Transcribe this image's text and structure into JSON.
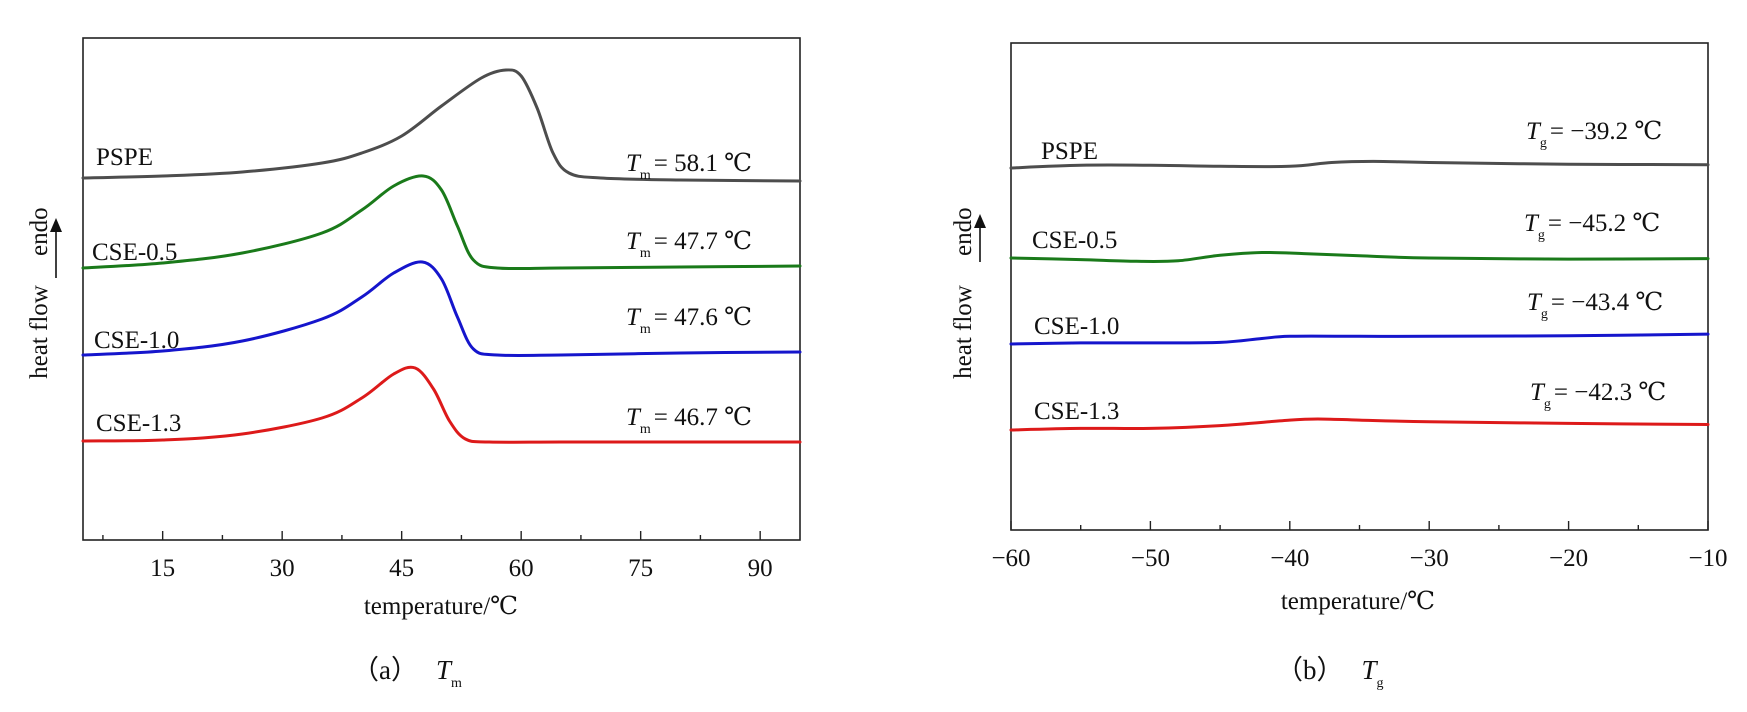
{
  "chart_data": [
    {
      "type": "line",
      "caption": {
        "label": "（a）",
        "symbol": "T",
        "subscript": "m"
      },
      "xlabel": "temperature/℃",
      "ylabel": "heat flow",
      "ylabel_arrow": "endo",
      "xlim": [
        5,
        95
      ],
      "xticks": [
        "15",
        "30",
        "45",
        "60",
        "75",
        "90"
      ],
      "xtick_values": [
        15,
        30,
        45,
        60,
        75,
        90
      ],
      "grid": false,
      "colors": [
        "#4d4d4d",
        "#1a7a1a",
        "#1515cc",
        "#dd1a1a"
      ],
      "series": [
        {
          "name": "PSPE",
          "color": "#4d4d4d",
          "annotation": {
            "symbol": "T",
            "subscript": "m",
            "text": "= 58.1 ℃"
          },
          "x": [
            5,
            15,
            25,
            35,
            40,
            45,
            50,
            55,
            58.1,
            60,
            62,
            64,
            66,
            70,
            80,
            95
          ],
          "y": [
            0.0,
            0.02,
            0.06,
            0.15,
            0.25,
            0.42,
            0.72,
            1.0,
            1.08,
            1.02,
            0.7,
            0.25,
            0.05,
            0.0,
            -0.02,
            -0.03
          ]
        },
        {
          "name": "CSE-0.5",
          "color": "#1a7a1a",
          "annotation": {
            "symbol": "T",
            "subscript": "m",
            "text": "= 47.7 ℃"
          },
          "x": [
            5,
            15,
            25,
            35,
            40,
            44,
            47.7,
            50,
            52,
            54,
            57,
            65,
            80,
            95
          ],
          "y": [
            0.0,
            0.05,
            0.15,
            0.35,
            0.58,
            0.82,
            0.92,
            0.78,
            0.42,
            0.08,
            0.0,
            0.0,
            0.01,
            0.02
          ]
        },
        {
          "name": "CSE-1.0",
          "color": "#1515cc",
          "annotation": {
            "symbol": "T",
            "subscript": "m",
            "text": "= 47.6 ℃"
          },
          "x": [
            5,
            15,
            25,
            35,
            40,
            44,
            47.6,
            50,
            52,
            54,
            57,
            65,
            80,
            95
          ],
          "y": [
            0.0,
            0.04,
            0.14,
            0.36,
            0.58,
            0.82,
            0.93,
            0.76,
            0.38,
            0.06,
            0.0,
            0.0,
            0.02,
            0.03
          ]
        },
        {
          "name": "CSE-1.3",
          "color": "#dd1a1a",
          "annotation": {
            "symbol": "T",
            "subscript": "m",
            "text": "= 46.7 ℃"
          },
          "x": [
            5,
            15,
            25,
            35,
            40,
            44,
            46.7,
            49,
            51,
            53,
            56,
            65,
            80,
            95
          ],
          "y": [
            0.0,
            0.01,
            0.07,
            0.23,
            0.43,
            0.67,
            0.73,
            0.52,
            0.2,
            0.02,
            -0.01,
            -0.01,
            -0.01,
            -0.01
          ]
        }
      ]
    },
    {
      "type": "line",
      "caption": {
        "label": "（b）",
        "symbol": "T",
        "subscript": "g"
      },
      "xlabel": "temperature/℃",
      "ylabel": "heat flow",
      "ylabel_arrow": "endo",
      "xlim": [
        -60,
        -10
      ],
      "xticks": [
        "−60",
        "−50",
        "−40",
        "−30",
        "−20",
        "−10"
      ],
      "xtick_values": [
        -60,
        -50,
        -40,
        -30,
        -20,
        -10
      ],
      "grid": false,
      "colors": [
        "#4d4d4d",
        "#1a7a1a",
        "#1515cc",
        "#dd1a1a"
      ],
      "series": [
        {
          "name": "PSPE",
          "color": "#4d4d4d",
          "annotation": {
            "symbol": "T",
            "subscript": "g",
            "text": "= −39.2 ℃"
          },
          "x": [
            -60,
            -55,
            -50,
            -45,
            -40,
            -37,
            -34,
            -30,
            -20,
            -10
          ],
          "y": [
            0.0,
            0.05,
            0.05,
            0.03,
            0.03,
            0.1,
            0.12,
            0.1,
            0.07,
            0.06
          ]
        },
        {
          "name": "CSE-0.5",
          "color": "#1a7a1a",
          "annotation": {
            "symbol": "T",
            "subscript": "g",
            "text": "= −45.2 ℃"
          },
          "x": [
            -60,
            -55,
            -51,
            -48,
            -45,
            -42,
            -39,
            -35,
            -30,
            -20,
            -10
          ],
          "y": [
            0.0,
            -0.03,
            -0.06,
            -0.05,
            0.05,
            0.1,
            0.08,
            0.04,
            0.0,
            -0.02,
            -0.01
          ]
        },
        {
          "name": "CSE-1.0",
          "color": "#1515cc",
          "annotation": {
            "symbol": "T",
            "subscript": "g",
            "text": "= −43.4 ℃"
          },
          "x": [
            -60,
            -55,
            -50,
            -45,
            -42,
            -40,
            -35,
            -30,
            -20,
            -10
          ],
          "y": [
            0.0,
            0.02,
            0.02,
            0.03,
            0.1,
            0.14,
            0.14,
            0.14,
            0.15,
            0.18
          ]
        },
        {
          "name": "CSE-1.3",
          "color": "#dd1a1a",
          "annotation": {
            "symbol": "T",
            "subscript": "g",
            "text": "= −42.3 ℃"
          },
          "x": [
            -60,
            -55,
            -50,
            -45,
            -40,
            -38,
            -35,
            -30,
            -20,
            -10
          ],
          "y": [
            0.0,
            0.03,
            0.03,
            0.08,
            0.18,
            0.2,
            0.18,
            0.15,
            0.12,
            0.1
          ]
        }
      ]
    }
  ]
}
